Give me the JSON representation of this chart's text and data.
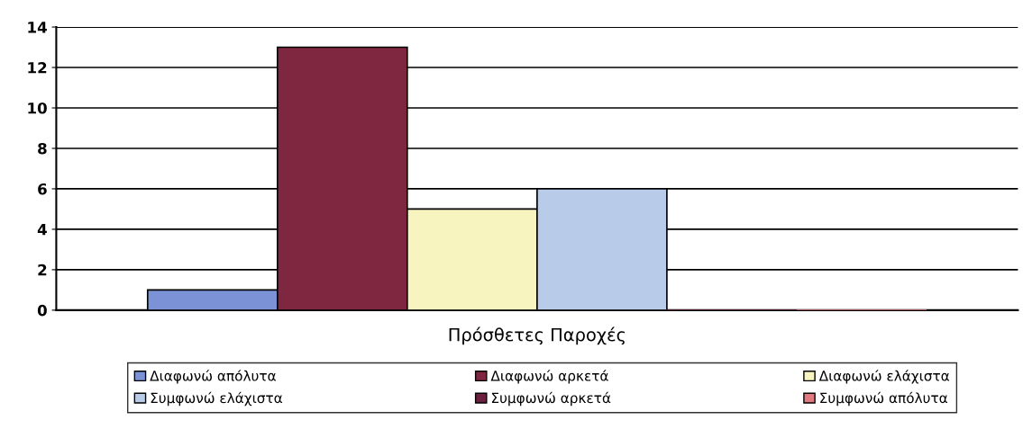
{
  "chart_data": {
    "type": "bar",
    "xlabel": "Πρόσθετες Παροχές",
    "categories": [
      null
    ],
    "series": [
      {
        "name": "Διαφωνώ απόλυτα",
        "color": "#7b93d6",
        "values": [
          1
        ]
      },
      {
        "name": "Διαφωνώ αρκετά",
        "color": "#7f2640",
        "values": [
          13
        ]
      },
      {
        "name": "Διαφωνώ ελάχιστα",
        "color": "#f8f4c0",
        "values": [
          5
        ]
      },
      {
        "name": "Συμφωνώ ελάχιστα",
        "color": "#b8cbe8",
        "values": [
          6
        ]
      },
      {
        "name": "Συμφωνώ αρκετά",
        "color": "#6b2040",
        "values": [
          0
        ]
      },
      {
        "name": "Συμφωνώ απόλυτα",
        "color": "#e07a80",
        "values": [
          0
        ]
      }
    ],
    "ylim": [
      0,
      14
    ],
    "yticks": [
      0,
      2,
      4,
      6,
      8,
      10,
      12,
      14
    ],
    "grid": "y",
    "legend": "bottom"
  }
}
